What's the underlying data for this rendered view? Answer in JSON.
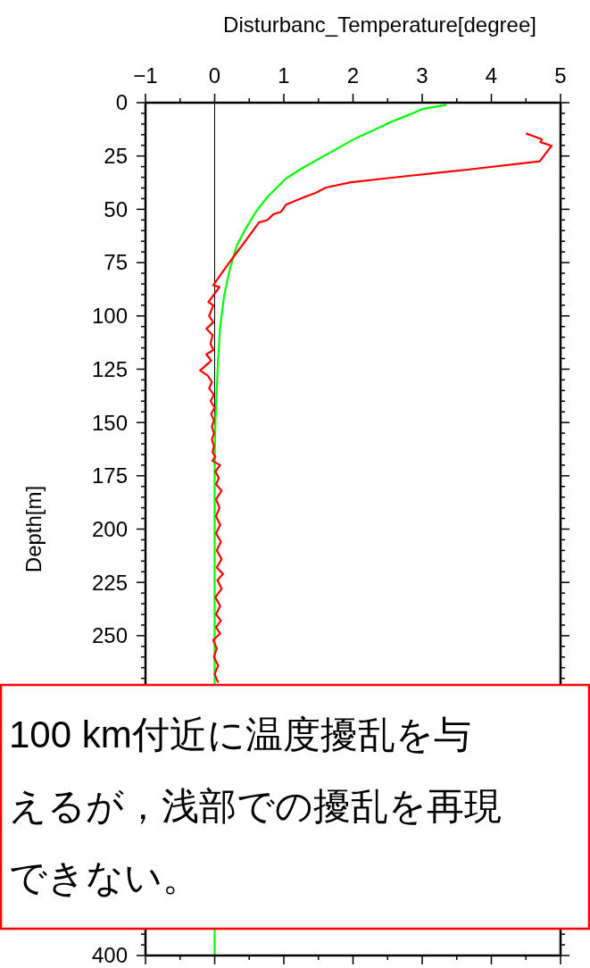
{
  "chart_data": {
    "type": "line",
    "xlabel": "Disturbanc_Temperature[degree]",
    "ylabel": "Depth[m]",
    "xlim": [
      -1,
      5
    ],
    "ylim": [
      400,
      0
    ],
    "xticks": [
      -1,
      {
        "value": -0.5,
        "label": null
      },
      0,
      {
        "value": 0.5,
        "label": null
      },
      1,
      {
        "value": 1.5,
        "label": null
      },
      2,
      {
        "value": 2.5,
        "label": null
      },
      3,
      {
        "value": 3.5,
        "label": null
      },
      4,
      {
        "value": 4.5,
        "label": null
      },
      5
    ],
    "yticks": [
      0,
      {
        "value": 5,
        "label": null
      },
      {
        "value": 10,
        "label": null
      },
      {
        "value": 15,
        "label": null
      },
      {
        "value": 20,
        "label": null
      },
      25,
      {
        "value": 30,
        "label": null
      },
      {
        "value": 35,
        "label": null
      },
      {
        "value": 40,
        "label": null
      },
      {
        "value": 45,
        "label": null
      },
      50,
      {
        "value": 55,
        "label": null
      },
      {
        "value": 60,
        "label": null
      },
      {
        "value": 65,
        "label": null
      },
      {
        "value": 70,
        "label": null
      },
      75,
      {
        "value": 80,
        "label": null
      },
      {
        "value": 85,
        "label": null
      },
      {
        "value": 90,
        "label": null
      },
      {
        "value": 95,
        "label": null
      },
      100,
      {
        "value": 105,
        "label": null
      },
      {
        "value": 110,
        "label": null
      },
      {
        "value": 115,
        "label": null
      },
      {
        "value": 120,
        "label": null
      },
      125,
      {
        "value": 130,
        "label": null
      },
      {
        "value": 135,
        "label": null
      },
      {
        "value": 140,
        "label": null
      },
      {
        "value": 145,
        "label": null
      },
      150,
      {
        "value": 155,
        "label": null
      },
      {
        "value": 160,
        "label": null
      },
      {
        "value": 165,
        "label": null
      },
      {
        "value": 170,
        "label": null
      },
      175,
      {
        "value": 180,
        "label": null
      },
      {
        "value": 185,
        "label": null
      },
      {
        "value": 190,
        "label": null
      },
      {
        "value": 195,
        "label": null
      },
      200,
      {
        "value": 205,
        "label": null
      },
      {
        "value": 210,
        "label": null
      },
      {
        "value": 215,
        "label": null
      },
      {
        "value": 220,
        "label": null
      },
      225,
      {
        "value": 230,
        "label": null
      },
      {
        "value": 235,
        "label": null
      },
      {
        "value": 240,
        "label": null
      },
      {
        "value": 245,
        "label": null
      },
      250,
      {
        "value": 255,
        "label": null
      },
      {
        "value": 260,
        "label": null
      },
      {
        "value": 265,
        "label": null
      },
      {
        "value": 270,
        "label": null
      },
      {
        "value": 275,
        "label": null
      },
      {
        "value": 390,
        "label": null
      },
      {
        "value": 395,
        "label": null
      },
      400
    ],
    "series": [
      {
        "color": "#00ff00",
        "x": [
          3.35,
          3.0,
          2.83,
          2.55,
          2.32,
          2.05,
          1.8,
          1.5,
          1.25,
          1.03,
          0.77,
          0.6,
          0.45,
          0.32,
          0.22,
          0.14,
          0.08,
          0.05,
          0.03,
          0.01,
          0,
          0
        ],
        "values": [
          1,
          3,
          5.4,
          9,
          12.6,
          16.5,
          21,
          26.5,
          31,
          35.6,
          44,
          51,
          59,
          67,
          78,
          90,
          105,
          120,
          135,
          150,
          165,
          400
        ]
      },
      {
        "color": "#ff0000",
        "x": [
          4.5,
          4.73,
          4.71,
          4.87,
          4.7,
          3.65,
          2.53,
          1.97,
          1.61,
          1.46,
          1.32,
          1.16,
          1.03,
          0.96,
          0.85,
          0.76,
          0.64,
          0.45,
          0.25,
          0.07,
          -0.02,
          0.07,
          -0.09,
          -0.02,
          -0.08,
          -0.02,
          -0.12,
          -0.03,
          -0.06,
          -0.02,
          -0.12,
          -0.05,
          -0.21,
          -0.1,
          -0.04,
          -0.08,
          -0.01,
          -0.06,
          0.0,
          -0.05,
          -0.01,
          -0.04,
          -0.01,
          -0.04,
          -0.01,
          -0.03,
          0.01,
          -0.03,
          0.08,
          0.01,
          0.06,
          0.02,
          0.1,
          0.02,
          0.07,
          0.02,
          0.08,
          0.02,
          0.09,
          0.03,
          0.1,
          0.03,
          0.12,
          0.04,
          0.1,
          0.01,
          0.08,
          0.02,
          0.09,
          0.02,
          0.08,
          -0.02,
          0.03,
          -0.01,
          0.05,
          0.0,
          0.05
        ],
        "values": [
          14.4,
          17.2,
          18.5,
          20.2,
          27.5,
          31.4,
          35.3,
          37.3,
          39.8,
          42.3,
          44,
          46.1,
          47.9,
          51.2,
          52.3,
          55.1,
          56.2,
          64.6,
          73.3,
          81.4,
          85.6,
          86.5,
          93.5,
          95,
          100,
          103,
          106,
          109,
          113,
          116,
          118,
          121,
          125.6,
          128,
          131,
          134,
          137,
          140,
          143,
          146,
          149,
          152,
          155,
          158,
          161,
          164,
          166,
          168,
          170,
          173,
          176,
          179,
          182,
          186,
          190,
          194,
          198,
          202,
          206,
          210,
          214,
          218,
          221,
          224,
          228,
          232,
          236,
          240,
          243,
          246,
          249,
          252,
          256,
          260,
          264,
          268,
          272
        ]
      }
    ],
    "ref_lines": [
      {
        "axis": "x",
        "value": 0,
        "color": "#000000"
      }
    ],
    "annotations": [
      "100 km付近に温度擾乱を与えるが，浅部での擾乱を再現できない。"
    ]
  }
}
